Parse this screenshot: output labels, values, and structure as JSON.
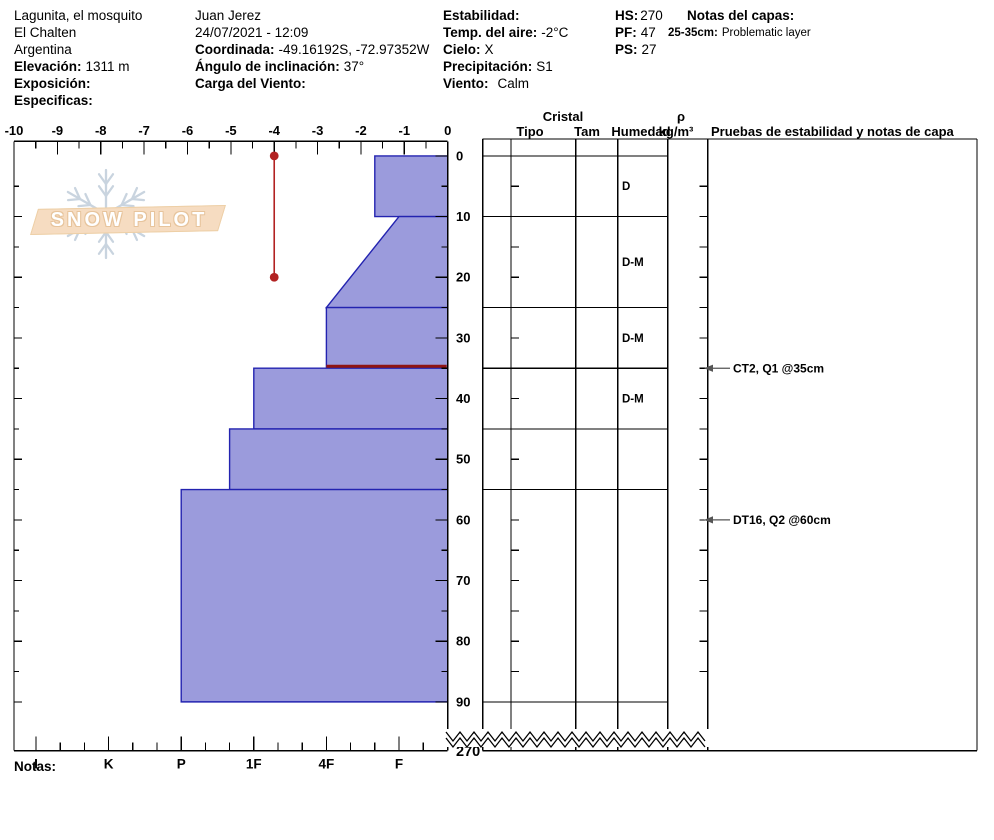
{
  "header": {
    "site": {
      "name": "Lagunita, el mosquito",
      "region": "El Chalten",
      "country": "Argentina",
      "elevation": {
        "label": "Elevación:",
        "value": "1311 m"
      },
      "aspect": {
        "label": "Exposición:",
        "value": ""
      },
      "specifics": {
        "label": "Especificas:",
        "value": ""
      }
    },
    "observation": {
      "observer": "Juan Jerez",
      "datetime": "24/07/2021 - 12:09",
      "coordinates": {
        "label": "Coordinada:",
        "value": "-49.16192S, -72.97352W"
      },
      "slope_angle": {
        "label": "Ángulo de inclinación:",
        "value": "37°"
      },
      "wind_loading": {
        "label": "Carga del Viento:",
        "value": ""
      }
    },
    "conditions": {
      "stability": {
        "label": "Estabilidad:",
        "value": ""
      },
      "air_temp": {
        "label": "Temp. del aire:",
        "value": "-2°C"
      },
      "sky": {
        "label": "Cielo:",
        "value": "X"
      },
      "precipitation": {
        "label": "Precipitación:",
        "value": "S1"
      },
      "wind": {
        "label": "Viento:",
        "value": "Calm"
      }
    },
    "snowpack": {
      "hs": {
        "label": "HS:",
        "value": "270"
      },
      "pf": {
        "label": "PF:",
        "value": "47"
      },
      "ps": {
        "label": "PS:",
        "value": "27"
      }
    },
    "layer_notes": {
      "title": "Notas del capas:",
      "note": {
        "label": "25-35cm:",
        "value": "Problematic layer"
      }
    }
  },
  "logo": {
    "text": "SNOW PILOT"
  },
  "footer": {
    "notes_label": "Notas:"
  },
  "chart_data": {
    "type": "snow-profile",
    "temperature_axis": {
      "unit": "°C",
      "min": -10,
      "max": 0,
      "tick_labels": [
        "-10",
        "-9",
        "-8",
        "-7",
        "-6",
        "-5",
        "-4",
        "-3",
        "-2",
        "-1",
        "0"
      ],
      "minor_step": 0.5
    },
    "hardness_axis": {
      "categories": [
        "I",
        "K",
        "P",
        "1F",
        "4F",
        "F"
      ]
    },
    "depth_axis": {
      "unit": "cm",
      "tick_labels": [
        "0",
        "10",
        "20",
        "30",
        "40",
        "50",
        "60",
        "70",
        "80",
        "90"
      ],
      "minor_step_cm": 5,
      "profile_depth_cm": 90,
      "total_depth_label": "270",
      "break_after_cm": 90
    },
    "layers": [
      {
        "top_cm": 0,
        "bottom_cm": 10,
        "hardness_top": "F+",
        "hardness_bottom": "F+",
        "wetness": "D"
      },
      {
        "top_cm": 10,
        "bottom_cm": 25,
        "hardness_top": "F",
        "hardness_bottom": "4F",
        "wetness": "D-M"
      },
      {
        "top_cm": 25,
        "bottom_cm": 35,
        "hardness_top": "4F",
        "hardness_bottom": "4F",
        "wetness": "D-M"
      },
      {
        "top_cm": 35,
        "bottom_cm": 45,
        "hardness_top": "1F",
        "hardness_bottom": "1F",
        "wetness": "D-M"
      },
      {
        "top_cm": 45,
        "bottom_cm": 55,
        "hardness_top": "1F+",
        "hardness_bottom": "1F+",
        "wetness": ""
      },
      {
        "top_cm": 55,
        "bottom_cm": 90,
        "hardness_top": "P",
        "hardness_bottom": "P",
        "wetness": ""
      }
    ],
    "temperature_profile": [
      {
        "depth_cm": 0,
        "temp_c": -4
      },
      {
        "depth_cm": 20,
        "temp_c": -4
      }
    ],
    "problematic_layer_depth_cm": 35,
    "stability_tests": [
      {
        "depth_cm": 35,
        "label": "CT2, Q1 @35cm"
      },
      {
        "depth_cm": 60,
        "label": "DT16, Q2 @60cm"
      }
    ],
    "table_headers": {
      "cristal": "Cristal",
      "tipo": "Tipo",
      "tam": "Tam",
      "humedad": "Humedad",
      "rho": "ρ",
      "rho_unit": "kg/m³",
      "tests": "Pruebas de estabilidad y notas de capa"
    },
    "colors": {
      "layer_fill": "#9b9bdc",
      "layer_border": "#2323b0",
      "temperature_line": "#b22222",
      "problem_line": "#8f1414",
      "axis": "#000000",
      "annotation": "#555555"
    }
  }
}
